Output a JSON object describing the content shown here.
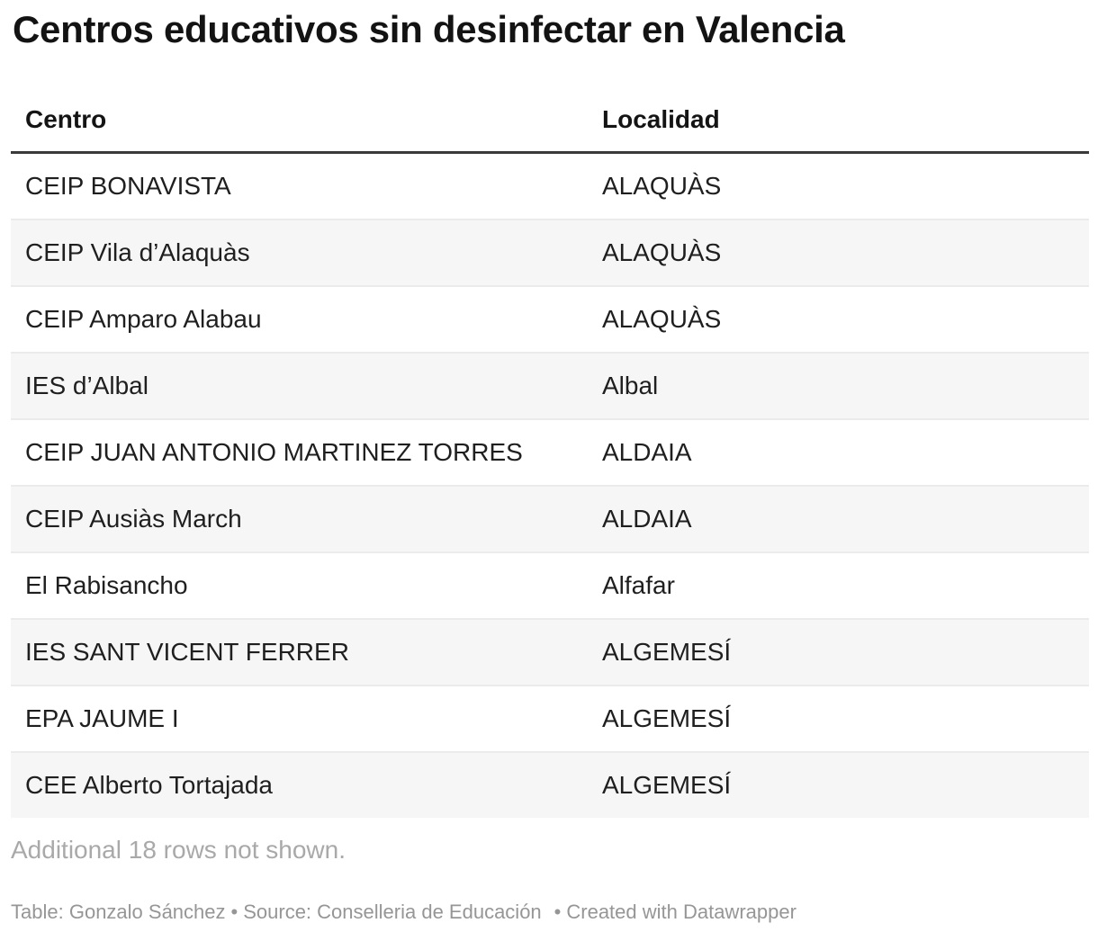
{
  "chart_data": {
    "type": "table",
    "title": "Centros educativos sin desinfectar en Valencia",
    "columns": [
      "Centro",
      "Localidad"
    ],
    "rows": [
      [
        "CEIP BONAVISTA",
        "ALAQUÀS"
      ],
      [
        "CEIP Vila d’Alaquàs",
        "ALAQUÀS"
      ],
      [
        "CEIP Amparo Alabau",
        "ALAQUÀS"
      ],
      [
        "IES d’Albal",
        "Albal"
      ],
      [
        "CEIP JUAN ANTONIO MARTINEZ TORRES",
        "ALDAIA"
      ],
      [
        "CEIP Ausiàs March",
        "ALDAIA"
      ],
      [
        "El Rabisancho",
        "Alfafar"
      ],
      [
        "IES SANT VICENT FERRER",
        "ALGEMESÍ"
      ],
      [
        "EPA JAUME I",
        "ALGEMESÍ"
      ],
      [
        "CEE Alberto Tortajada",
        "ALGEMESÍ"
      ]
    ],
    "note": "Additional 18 rows not shown.",
    "hidden_rows_count": 18,
    "layout_hints": {
      "striped": true,
      "stripe_color": "#f6f6f6",
      "row_border_color": "#ebebeb",
      "header_rule_color": "#3a3a3a"
    }
  },
  "footer": {
    "table_label": "Table:",
    "author": "Gonzalo Sánchez",
    "bullet": "•",
    "source_label": "Source:",
    "source_name": "Conselleria de Educación",
    "created_text": "Created with Datawrapper"
  },
  "colors": {
    "title_text": "#131313",
    "body_text": "#1f1f1f",
    "note_text": "#a9a9a9",
    "footer_text": "#969696",
    "background": "#ffffff"
  }
}
